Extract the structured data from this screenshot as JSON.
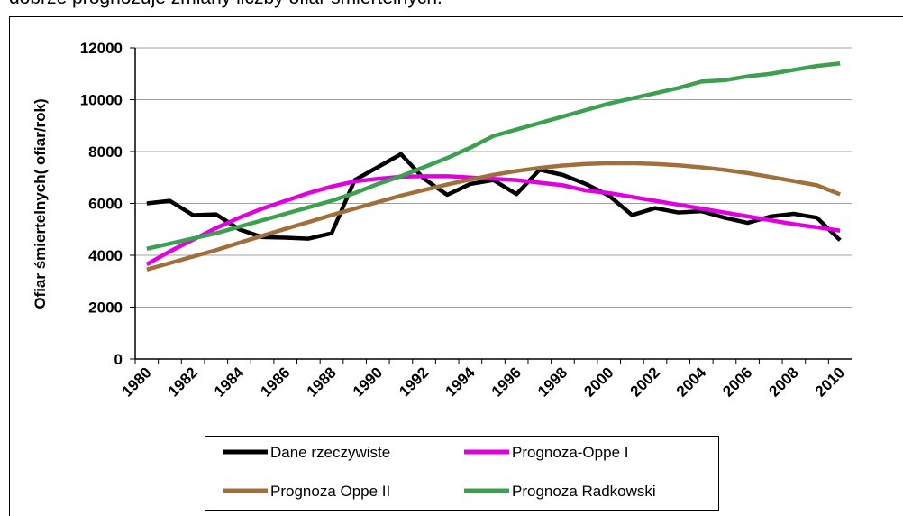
{
  "text_above": "dobrze prognozuje zmiany liczby ofiar śmiertelnych.",
  "chart_data": {
    "type": "line",
    "y_label": "Ofiar śmiertelnych( ofiar/rok)",
    "x": [
      1980,
      1981,
      1982,
      1983,
      1984,
      1985,
      1986,
      1987,
      1988,
      1989,
      1990,
      1991,
      1992,
      1993,
      1994,
      1995,
      1996,
      1997,
      1998,
      1999,
      2000,
      2001,
      2002,
      2003,
      2004,
      2005,
      2006,
      2007,
      2008,
      2009,
      2010
    ],
    "xlim": [
      1979.5,
      2010.5
    ],
    "xticks": [
      1980,
      1982,
      1984,
      1986,
      1988,
      1990,
      1992,
      1994,
      1996,
      1998,
      2000,
      2002,
      2004,
      2006,
      2008,
      2010
    ],
    "ylim": [
      0,
      12000
    ],
    "yticks": [
      0,
      2000,
      4000,
      6000,
      8000,
      10000,
      12000
    ],
    "grid": true,
    "series": [
      {
        "name": "Dane rzeczywiste",
        "color": "#000000",
        "values": [
          6000,
          6100,
          5550,
          5580,
          5000,
          4700,
          4680,
          4640,
          4850,
          6900,
          7400,
          7900,
          6950,
          6330,
          6750,
          6900,
          6360,
          7300,
          7100,
          6750,
          6300,
          5550,
          5820,
          5650,
          5700,
          5450,
          5250,
          5500,
          5600,
          5450,
          4580
        ]
      },
      {
        "name": "Prognoza-Oppe I",
        "color": "#e000e0",
        "values": [
          3650,
          4150,
          4600,
          5050,
          5450,
          5800,
          6100,
          6400,
          6650,
          6850,
          6950,
          7030,
          7050,
          7050,
          7000,
          6950,
          6900,
          6800,
          6700,
          6500,
          6400,
          6250,
          6100,
          5950,
          5800,
          5650,
          5500,
          5350,
          5200,
          5080,
          4950
        ]
      },
      {
        "name": "Prognoza Oppe II",
        "color": "#a0703c",
        "values": [
          3450,
          3700,
          3950,
          4200,
          4480,
          4750,
          5020,
          5280,
          5550,
          5800,
          6050,
          6300,
          6520,
          6730,
          6920,
          7100,
          7250,
          7370,
          7460,
          7520,
          7550,
          7550,
          7520,
          7470,
          7390,
          7290,
          7170,
          7020,
          6860,
          6700,
          6350
        ]
      },
      {
        "name": "Prognoza Radkowski",
        "color": "#3ca050",
        "values": [
          4250,
          4450,
          4650,
          4850,
          5100,
          5350,
          5600,
          5850,
          6100,
          6400,
          6750,
          7050,
          7400,
          7750,
          8150,
          8600,
          8850,
          9100,
          9350,
          9600,
          9850,
          10050,
          10250,
          10450,
          10700,
          10750,
          10900,
          11000,
          11150,
          11300,
          11400
        ]
      }
    ]
  }
}
